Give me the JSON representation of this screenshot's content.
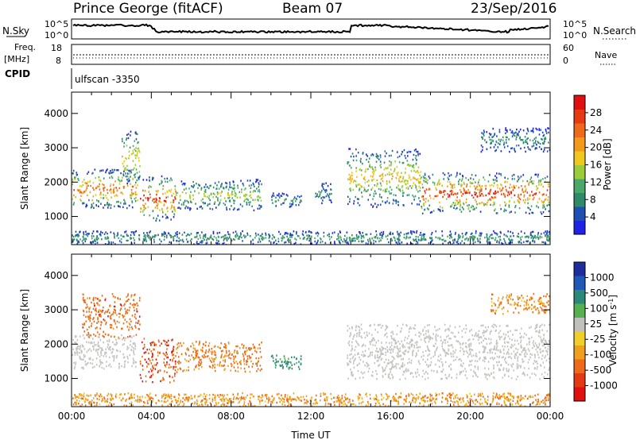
{
  "header": {
    "station": "Prince George (fitACF)",
    "beam": "Beam 07",
    "date": "23/Sep/2016"
  },
  "top_strip": {
    "left_label": "N.Sky",
    "right_label": "N.Search",
    "left_ticks": [
      "10^5",
      "10^0"
    ],
    "right_ticks": [
      "10^5",
      "10^0"
    ]
  },
  "freq_strip": {
    "label_line1": "Freq.",
    "label_line2": "[MHz]",
    "ticks": [
      "18",
      "8"
    ],
    "right_label": "Nave",
    "right_ticks": [
      "60",
      "0"
    ]
  },
  "cpid": {
    "label": "CPID",
    "mode_text": "ulfscan -3350"
  },
  "colors": {
    "power_scale": [
      "#1f23e6",
      "#1e4fb3",
      "#2f8a6a",
      "#4aa86a",
      "#9ccc3a",
      "#f0c81e",
      "#f39a1a",
      "#ee6a1a",
      "#e63a12",
      "#e01010"
    ],
    "velocity_scale": [
      "#1e2c9e",
      "#1f58b7",
      "#2a8a7a",
      "#57b050",
      "#c0c0bc",
      "#f1cf2a",
      "#f0a01e",
      "#ec6a18",
      "#e23a14",
      "#e01010"
    ],
    "ground_scatter": "#c3c3bf"
  },
  "chart_data": [
    {
      "type": "heatmap",
      "title": "Power",
      "xlabel": "Time UT",
      "ylabel": "Slant Range [km]",
      "x_ticks": [
        "00:00",
        "04:00",
        "08:00",
        "12:00",
        "16:00",
        "20:00",
        "00:00"
      ],
      "xlim_hours": [
        0,
        24
      ],
      "ylim_km": [
        180,
        4620
      ],
      "y_ticks": [
        1000,
        2000,
        3000,
        4000
      ],
      "colorbar": {
        "label": "Power [dB]",
        "range": [
          0,
          32
        ],
        "ticks": [
          4,
          8,
          12,
          16,
          20,
          24,
          28
        ]
      },
      "regions": [
        {
          "t_start": 0.0,
          "t_end": 3.3,
          "range_km": [
            1250,
            2400
          ],
          "peak_db": 26
        },
        {
          "t_start": 2.5,
          "t_end": 3.4,
          "range_km": [
            1900,
            3500
          ],
          "peak_db": 20
        },
        {
          "t_start": 3.4,
          "t_end": 5.2,
          "range_km": [
            900,
            2200
          ],
          "peak_db": 30
        },
        {
          "t_start": 5.2,
          "t_end": 9.5,
          "range_km": [
            1200,
            2100
          ],
          "peak_db": 16
        },
        {
          "t_start": 10.0,
          "t_end": 11.5,
          "range_km": [
            1300,
            1700
          ],
          "peak_db": 10
        },
        {
          "t_start": 12.2,
          "t_end": 13.0,
          "range_km": [
            1400,
            2000
          ],
          "peak_db": 8
        },
        {
          "t_start": 13.8,
          "t_end": 17.5,
          "range_km": [
            1300,
            3000
          ],
          "peak_db": 20
        },
        {
          "t_start": 17.5,
          "t_end": 24.0,
          "range_km": [
            1100,
            2300
          ],
          "peak_db": 30
        },
        {
          "t_start": 20.5,
          "t_end": 24.0,
          "range_km": [
            2900,
            3600
          ],
          "peak_db": 8
        },
        {
          "t_start": 0.0,
          "t_end": 24.0,
          "range_km": [
            200,
            600
          ],
          "peak_db": 10
        }
      ]
    },
    {
      "type": "heatmap",
      "title": "Velocity",
      "xlabel": "Time UT",
      "ylabel": "Slant Range [km]",
      "x_ticks": [
        "00:00",
        "04:00",
        "08:00",
        "12:00",
        "16:00",
        "20:00",
        "00:00"
      ],
      "xlim_hours": [
        0,
        24
      ],
      "ylim_km": [
        180,
        4620
      ],
      "y_ticks": [
        1000,
        2000,
        3000,
        4000
      ],
      "colorbar": {
        "label": "Velocity [m s-1]",
        "label_main": "Velocity [m s",
        "label_sup": "-1",
        "label_end": "]",
        "ticks": [
          "1000",
          "500",
          "100",
          "25",
          "-25",
          "-100",
          "-500",
          "-1000"
        ]
      },
      "regions": [
        {
          "t_start": 0.0,
          "t_end": 3.2,
          "range_km": [
            1300,
            2300
          ],
          "kind": "ground"
        },
        {
          "t_start": 0.5,
          "t_end": 3.4,
          "range_km": [
            2200,
            3500
          ],
          "velocity": -300
        },
        {
          "t_start": 3.4,
          "t_end": 5.2,
          "range_km": [
            900,
            2200
          ],
          "velocity": -400
        },
        {
          "t_start": 5.2,
          "t_end": 9.5,
          "range_km": [
            1200,
            2100
          ],
          "velocity": -150
        },
        {
          "t_start": 10.0,
          "t_end": 11.5,
          "range_km": [
            1300,
            1700
          ],
          "velocity": 200
        },
        {
          "t_start": 13.8,
          "t_end": 24.0,
          "range_km": [
            1000,
            2600
          ],
          "kind": "ground"
        },
        {
          "t_start": 21.0,
          "t_end": 24.0,
          "range_km": [
            2900,
            3500
          ],
          "velocity": -100
        },
        {
          "t_start": 0.0,
          "t_end": 24.0,
          "range_km": [
            200,
            600
          ],
          "velocity": -80
        }
      ]
    }
  ]
}
